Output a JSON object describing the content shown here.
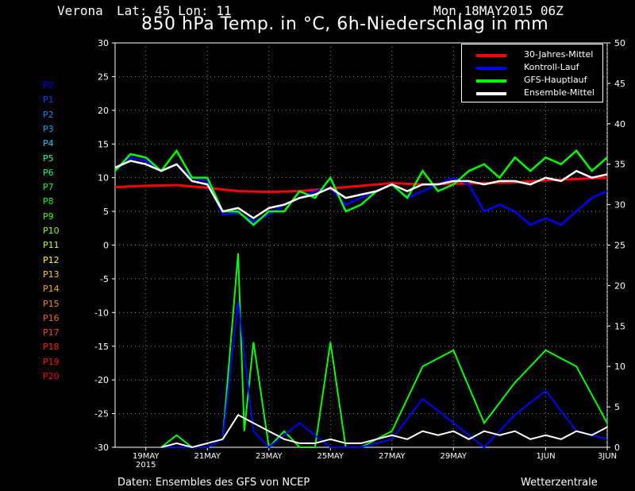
{
  "header": {
    "location": "Verona",
    "latlon": "Lat: 45 Lon: 11",
    "datetime": "Mon,18MAY2015 06Z"
  },
  "footer": {
    "source": "Daten: Ensembles des GFS von NCEP",
    "brand": "Wetterzentrale"
  },
  "chart_data": {
    "type": "line",
    "title": "850 hPa Temp. in °C, 6h-Niederschlag in mm",
    "x_tick_labels": [
      "19MAY\n2015",
      "21MAY",
      "23MAY",
      "25MAY",
      "27MAY",
      "29MAY",
      "1JUN",
      "3JUN"
    ],
    "x_ticks_day": [
      1,
      3,
      5,
      7,
      9,
      11,
      14,
      16
    ],
    "x_range_days_from_18may": [
      0,
      16
    ],
    "y_left": {
      "label": "850 hPa Temp. °C",
      "range": [
        -30,
        30
      ],
      "ticks": [
        -30,
        -25,
        -20,
        -15,
        -10,
        -5,
        0,
        5,
        10,
        15,
        20,
        25,
        30
      ]
    },
    "y_right": {
      "label": "6h-Niederschlag mm",
      "range": [
        0,
        50
      ],
      "ticks": [
        0,
        5,
        10,
        15,
        20,
        25,
        30,
        35,
        40,
        45,
        50
      ]
    },
    "grid": true,
    "legend_position": "top-right",
    "legend": [
      {
        "name": "30-Jahres-Mittel",
        "color": "#ff0000"
      },
      {
        "name": "Kontroll-Lauf",
        "color": "#0000ff"
      },
      {
        "name": "GFS-Hauptlauf",
        "color": "#00ff00"
      },
      {
        "name": "Ensemble-Mittel",
        "color": "#ffffff"
      }
    ],
    "members": [
      {
        "name": "P0",
        "color": "#0000ff"
      },
      {
        "name": "P1",
        "color": "#0044ff"
      },
      {
        "name": "P2",
        "color": "#0088ff"
      },
      {
        "name": "P3",
        "color": "#00aaff"
      },
      {
        "name": "P4",
        "color": "#00ccff"
      },
      {
        "name": "P5",
        "color": "#00ffcc"
      },
      {
        "name": "P6",
        "color": "#00ff88"
      },
      {
        "name": "P7",
        "color": "#00ff44"
      },
      {
        "name": "P8",
        "color": "#00ff00"
      },
      {
        "name": "P9",
        "color": "#44ff00"
      },
      {
        "name": "P10",
        "color": "#88ff00"
      },
      {
        "name": "P11",
        "color": "#ccff00"
      },
      {
        "name": "P12",
        "color": "#ffff00"
      },
      {
        "name": "P13",
        "color": "#ffcc00"
      },
      {
        "name": "P14",
        "color": "#ffaa00"
      },
      {
        "name": "P15",
        "color": "#ff8800"
      },
      {
        "name": "P16",
        "color": "#ff6600"
      },
      {
        "name": "P17",
        "color": "#ff4400"
      },
      {
        "name": "P18",
        "color": "#ff2200"
      },
      {
        "name": "P19",
        "color": "#ff1100"
      },
      {
        "name": "P20",
        "color": "#ff0000"
      }
    ],
    "series_temperature": [
      {
        "name": "30-Jahres-Mittel",
        "color": "#ff0000",
        "x": [
          0,
          1,
          2,
          3,
          4,
          5,
          6,
          7,
          8,
          9,
          10,
          11,
          12,
          13,
          14,
          15,
          16
        ],
        "y": [
          8.6,
          8.8,
          8.9,
          8.5,
          8.0,
          7.9,
          8.0,
          8.4,
          8.8,
          9.2,
          9.0,
          9.1,
          9.2,
          9.3,
          9.6,
          9.8,
          10.0
        ]
      },
      {
        "name": "Kontroll-Lauf",
        "color": "#0000ff",
        "x": [
          0,
          0.5,
          1,
          1.5,
          2,
          2.5,
          3,
          3.5,
          4,
          4.5,
          5,
          5.5,
          6,
          6.5,
          7,
          7.5,
          8,
          8.5,
          9,
          9.5,
          10,
          10.5,
          11,
          11.5,
          12,
          12.5,
          13,
          13.5,
          14,
          14.5,
          15,
          15.5,
          16
        ],
        "y": [
          11,
          13,
          12.5,
          11,
          12,
          10,
          9.5,
          4.5,
          4.8,
          3.5,
          4.5,
          6,
          7,
          8,
          8.5,
          6,
          7,
          8,
          9,
          7,
          8,
          9,
          10,
          9,
          5,
          6,
          5,
          3,
          4,
          3,
          5,
          7,
          8
        ]
      },
      {
        "name": "GFS-Hauptlauf",
        "color": "#00ff00",
        "x": [
          0,
          0.5,
          1,
          1.5,
          2,
          2.5,
          3,
          3.5,
          4,
          4.5,
          5,
          5.5,
          6,
          6.5,
          7,
          7.5,
          8,
          8.5,
          9,
          9.5,
          10,
          10.5,
          11,
          11.5,
          12,
          12.5,
          13,
          13.5,
          14,
          14.5,
          15,
          15.5,
          16
        ],
        "y": [
          11,
          13.5,
          13,
          11,
          14,
          10,
          10,
          5,
          5,
          3,
          5,
          5,
          8,
          7,
          10,
          5,
          6,
          8,
          9,
          7,
          11,
          8,
          9,
          11,
          12,
          10,
          13,
          11,
          13,
          12,
          14,
          11,
          13
        ]
      },
      {
        "name": "Ensemble-Mittel",
        "color": "#ffffff",
        "x": [
          0,
          0.5,
          1,
          1.5,
          2,
          2.5,
          3,
          3.5,
          4,
          4.5,
          5,
          5.5,
          6,
          6.5,
          7,
          7.5,
          8,
          8.5,
          9,
          9.5,
          10,
          10.5,
          11,
          11.5,
          12,
          12.5,
          13,
          13.5,
          14,
          14.5,
          15,
          15.5,
          16
        ],
        "y": [
          11.5,
          12.5,
          12,
          11,
          12,
          9.5,
          9,
          5,
          5.5,
          4,
          5.5,
          6,
          7,
          7.5,
          8.5,
          7,
          7.5,
          8,
          9,
          8,
          9,
          9,
          9.5,
          9.5,
          9,
          9.5,
          9.5,
          9,
          10,
          9.5,
          11,
          10,
          10.5
        ]
      }
    ],
    "series_precipitation": [
      {
        "name": "GFS-Hauptlauf",
        "color": "#00ff00",
        "x": [
          1.5,
          2,
          2.5,
          3,
          3.5,
          4,
          4.2,
          4.5,
          5,
          5.5,
          6,
          6.5,
          7,
          7.5,
          8,
          9,
          10,
          11,
          12,
          13,
          14,
          15,
          16
        ],
        "y": [
          0,
          1.5,
          0,
          0,
          1,
          24,
          2,
          13,
          0,
          2,
          0,
          0,
          13,
          0,
          0,
          2,
          10,
          12,
          3,
          8,
          12,
          10,
          3
        ]
      },
      {
        "name": "Kontroll-Lauf",
        "color": "#0000ff",
        "x": [
          1.5,
          2,
          3,
          3.5,
          4,
          4.5,
          5,
          6,
          7,
          8,
          9,
          10,
          11,
          12,
          13,
          14,
          15,
          16
        ],
        "y": [
          0,
          0,
          0,
          1,
          18,
          2,
          0,
          3,
          0,
          0,
          1,
          6,
          3,
          0,
          4,
          7,
          2,
          1
        ]
      },
      {
        "name": "Ensemble-Mittel",
        "color": "#ffffff",
        "x": [
          1.5,
          2,
          2.5,
          3,
          3.5,
          4,
          4.5,
          5,
          5.5,
          6,
          6.5,
          7,
          7.5,
          8,
          8.5,
          9,
          9.5,
          10,
          10.5,
          11,
          11.5,
          12,
          12.5,
          13,
          13.5,
          14,
          14.5,
          15,
          15.5,
          16
        ],
        "y": [
          0,
          0.5,
          0,
          0.5,
          1,
          4,
          3,
          2,
          1,
          0.5,
          0.5,
          1,
          0.5,
          0.5,
          1,
          1.5,
          1,
          2,
          1.5,
          2,
          1,
          2,
          1.5,
          2,
          1,
          1.5,
          1,
          2,
          1.5,
          2.5
        ]
      }
    ]
  }
}
